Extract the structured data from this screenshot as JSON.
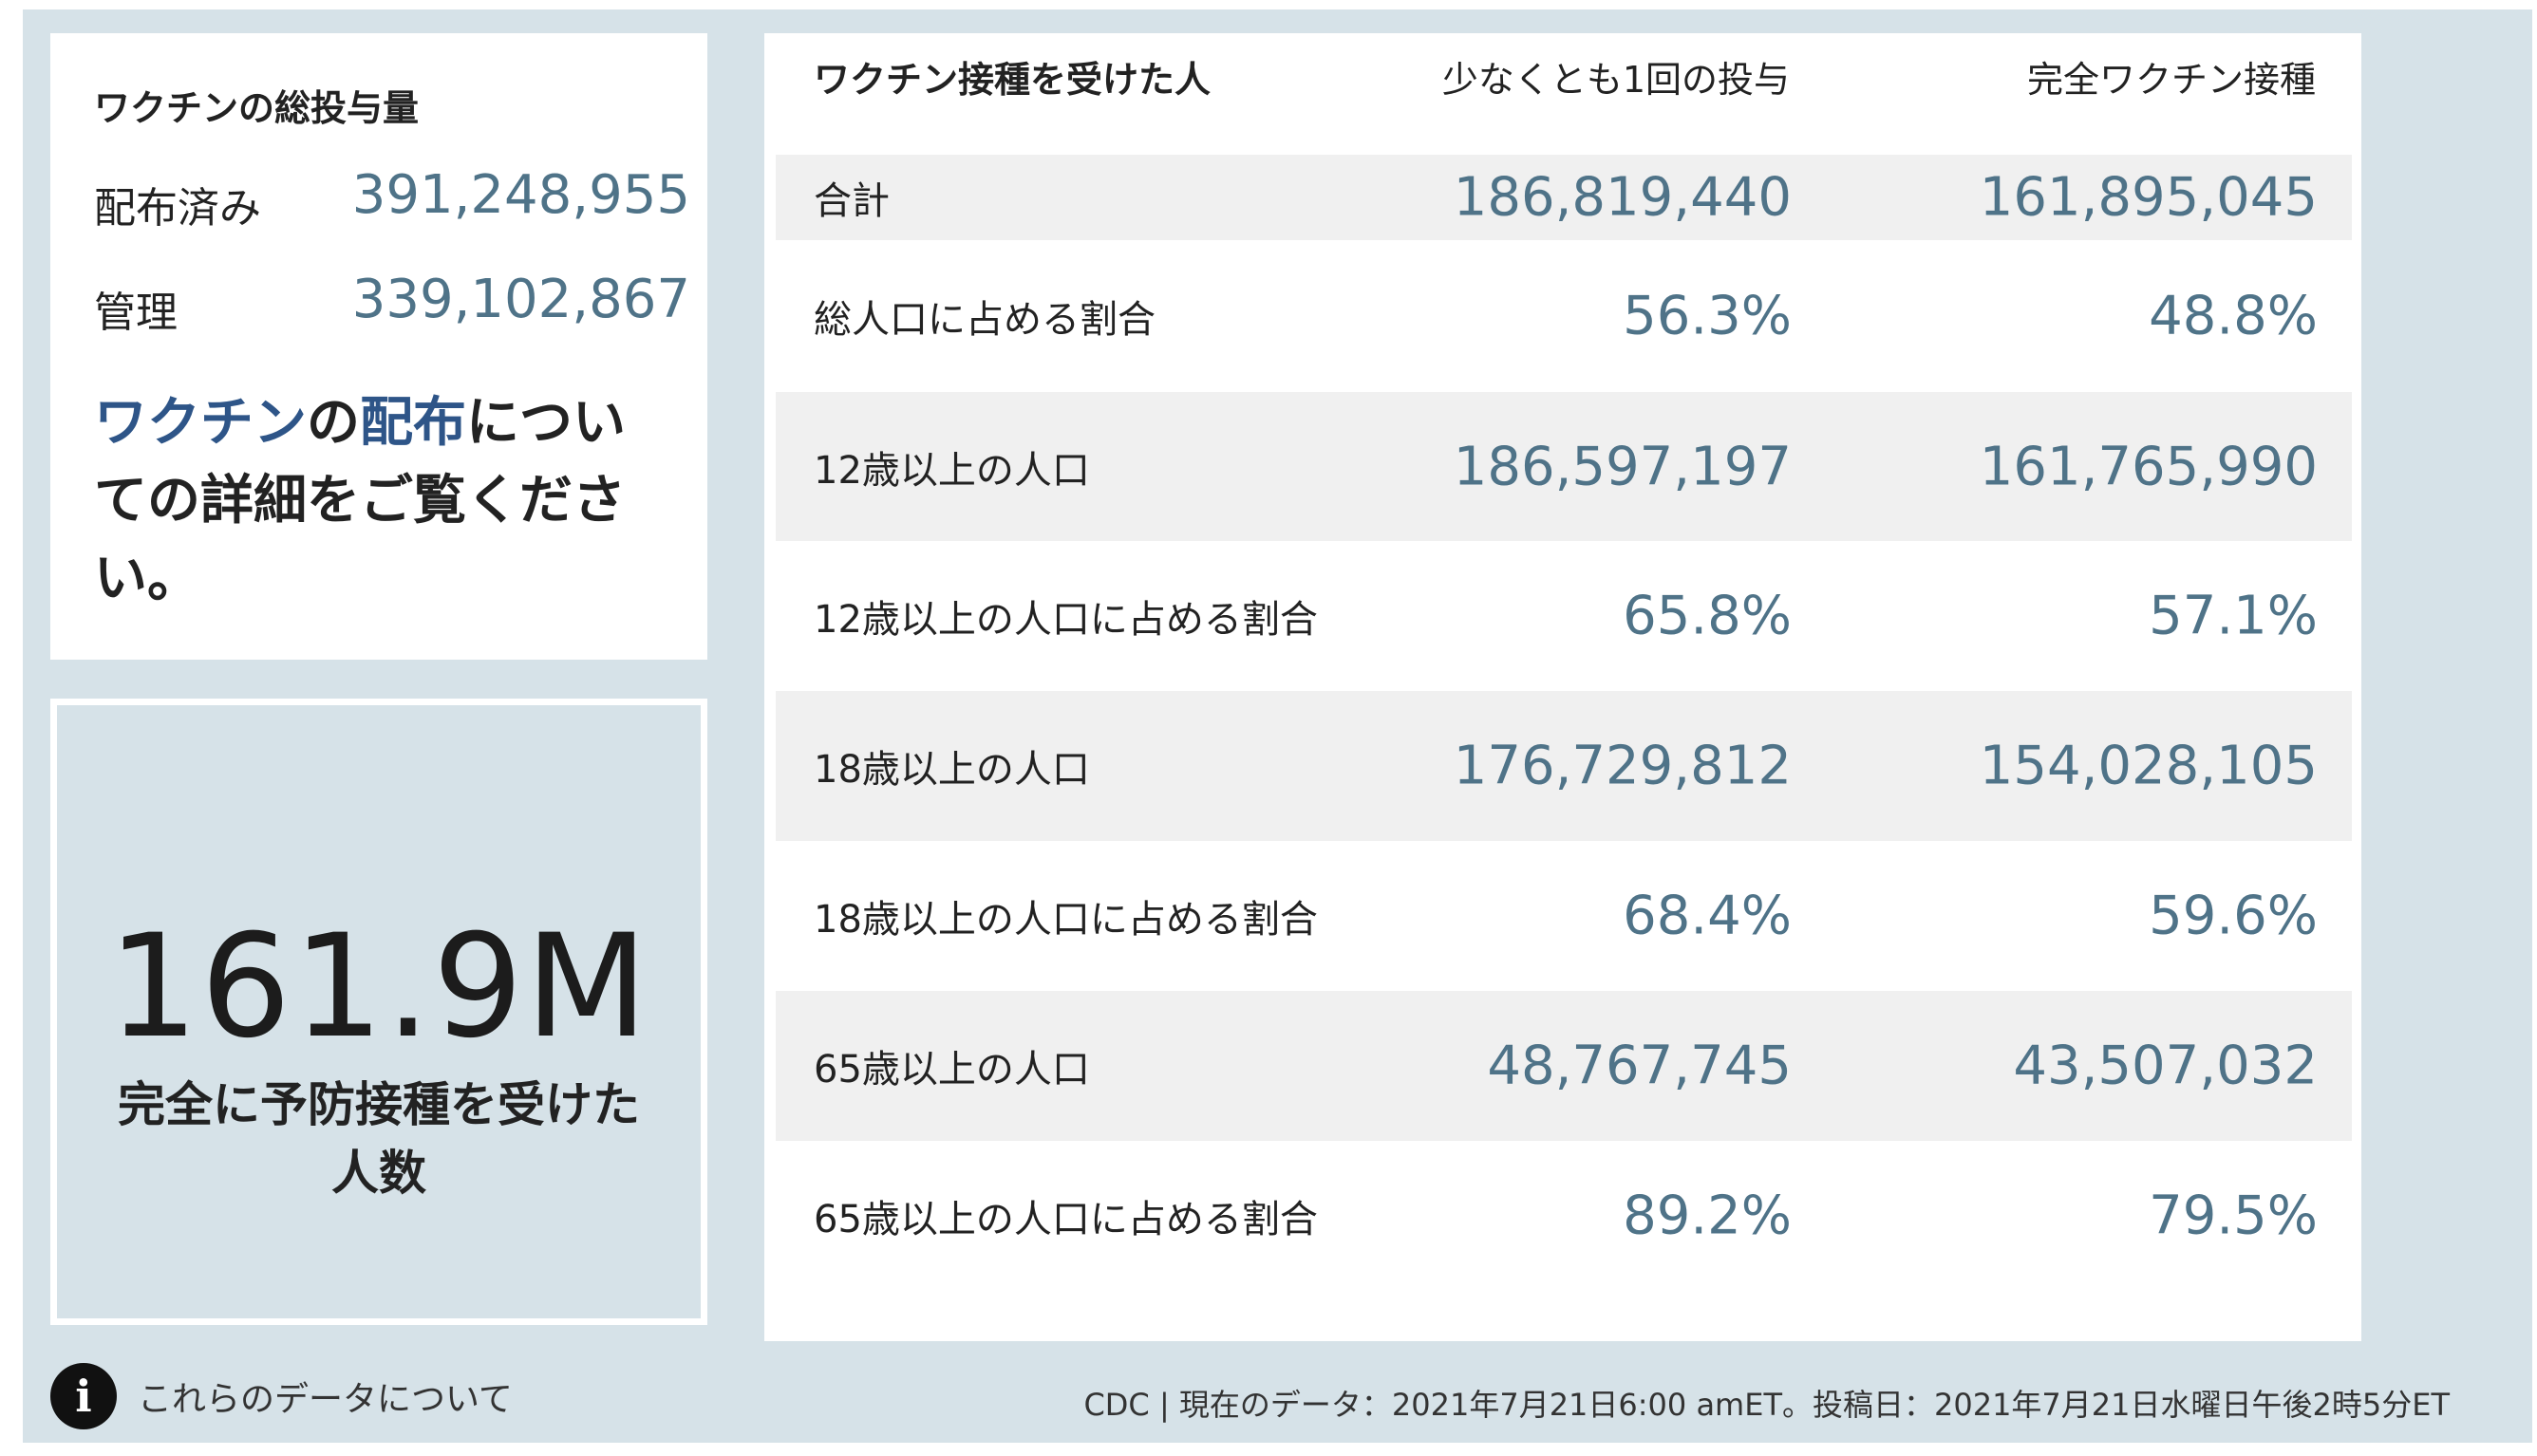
{
  "doses": {
    "title": "ワクチンの総投与量",
    "distributed_label": "配布済み",
    "distributed_value": "391,248,955",
    "administered_label": "管理",
    "administered_value": "339,102,867",
    "link_part1": "ワクチン",
    "link_part2": "の",
    "link_part3": "配布",
    "link_part4": "についての詳細をご覧ください。"
  },
  "big_stat": {
    "value": "161.9M",
    "caption": "完全に予防接種を受けた人数"
  },
  "table": {
    "headers": [
      "ワクチン接種を受けた人",
      "少なくとも1回の投与",
      "完全ワクチン接種"
    ],
    "rows": [
      {
        "label": "合計",
        "at_least_one": "186,819,440",
        "fully": "161,895,045"
      },
      {
        "label": "総人口に占める割合",
        "at_least_one": "56.3%",
        "fully": "48.8%"
      },
      {
        "label": "12歳以上の人口",
        "at_least_one": "186,597,197",
        "fully": "161,765,990"
      },
      {
        "label": "12歳以上の人口に占める割合",
        "at_least_one": "65.8%",
        "fully": "57.1%"
      },
      {
        "label": "18歳以上の人口",
        "at_least_one": "176,729,812",
        "fully": "154,028,105"
      },
      {
        "label": "18歳以上の人口に占める割合",
        "at_least_one": "68.4%",
        "fully": "59.6%"
      },
      {
        "label": "65歳以上の人口",
        "at_least_one": "48,767,745",
        "fully": "43,507,032"
      },
      {
        "label": "65歳以上の人口に占める割合",
        "at_least_one": "89.2%",
        "fully": "79.5%"
      }
    ]
  },
  "footer": {
    "info_icon": "info-icon",
    "info_text": "これらのデータについて",
    "source": "CDC | 現在のデータ：2021年7月21日6:00 amET。投稿日：2021年7月21日水曜日午後2時5分ET"
  },
  "colors": {
    "background": "#d6e2e8",
    "value_text": "#4f7388",
    "link_highlight": "#2e5588",
    "row_shade": "#f0f0f0"
  }
}
